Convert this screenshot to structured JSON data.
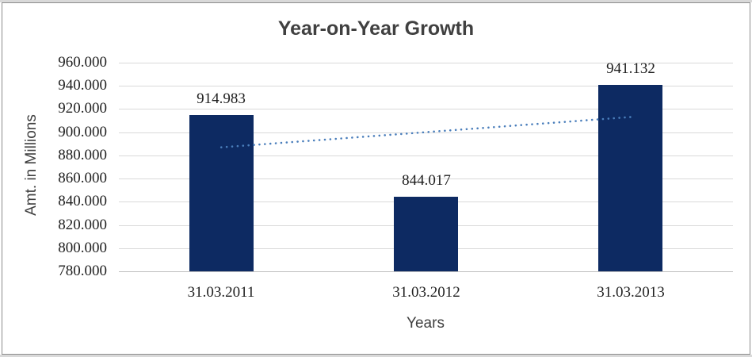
{
  "chart_data": {
    "type": "bar",
    "title": "Year-on-Year Growth",
    "xlabel": "Years",
    "ylabel": "Amt. in Millions",
    "categories": [
      "31.03.2011",
      "31.03.2012",
      "31.03.2013"
    ],
    "values": [
      914.983,
      844.017,
      941.132
    ],
    "data_labels": [
      "914.983",
      "844.017",
      "941.132"
    ],
    "ylim": [
      780,
      960
    ],
    "ytick_step": 20,
    "ytick_labels": [
      "960.000",
      "940.000",
      "920.000",
      "900.000",
      "880.000",
      "860.000",
      "840.000",
      "820.000",
      "800.000",
      "780.000"
    ],
    "grid": "horizontal",
    "legend_position": "none",
    "trendline": {
      "style": "dotted",
      "values": [
        886.97,
        900.04,
        913.12
      ]
    },
    "colors": {
      "bar": "#0d2a62",
      "trendline": "#4a7ebb",
      "gridline": "#d9d9d9",
      "axis_line": "#bfbfbf",
      "title_text": "#404040",
      "tick_text": "#1f1f1f",
      "frame_border": "#8c8c8c",
      "outer_band": "#d9d9d9",
      "background": "#ffffff"
    }
  }
}
